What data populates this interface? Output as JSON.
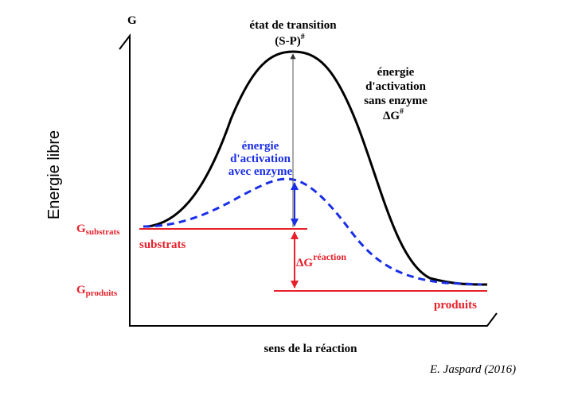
{
  "axes": {
    "y_label": "G",
    "side_label": "Energie libre",
    "x_label": "sens de la réaction"
  },
  "transition_state": {
    "line1": "état de transition",
    "line2": "(S-P)",
    "line2_sup": "#"
  },
  "without_enzyme": {
    "line1": "énergie",
    "line2": "d'activation",
    "line3": "sans enzyme",
    "line4": "ΔG",
    "line4_sup": "#"
  },
  "with_enzyme": {
    "line1": "énergie",
    "line2": "d'activation",
    "line3": "avec enzyme"
  },
  "levels": {
    "g_substrates": "G",
    "g_substrates_sub": "substrats",
    "g_products": "G",
    "g_products_sub": "produits",
    "substrates": "substrats",
    "products": "produits"
  },
  "reaction_delta": {
    "symbol": "ΔG",
    "sup": "réaction"
  },
  "credit": "E. Jaspard (2016)"
}
